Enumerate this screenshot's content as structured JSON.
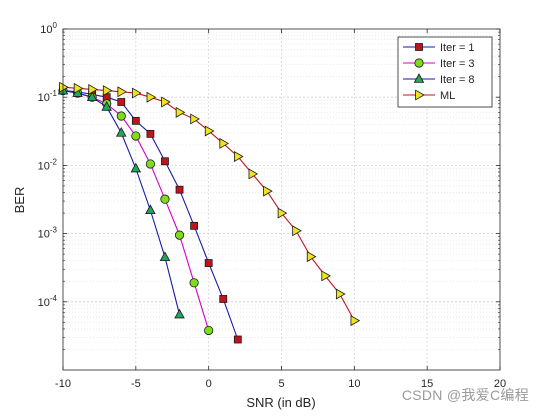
{
  "chart_data": {
    "type": "line",
    "xlabel": "SNR (in dB)",
    "ylabel": "BER",
    "xlim": [
      -10,
      20
    ],
    "ylim": [
      1e-05,
      1
    ],
    "yscale": "log",
    "grid": true,
    "legend_position": "top-right",
    "x_ticks": [
      -10,
      -5,
      0,
      5,
      10,
      15,
      20
    ],
    "y_ticks": [
      {
        "value": 1,
        "base": "10",
        "exp": "0"
      },
      {
        "value": 0.1,
        "base": "10",
        "exp": "-1"
      },
      {
        "value": 0.01,
        "base": "10",
        "exp": "-2"
      },
      {
        "value": 0.001,
        "base": "10",
        "exp": "-3"
      },
      {
        "value": 0.0001,
        "base": "10",
        "exp": "-4"
      }
    ],
    "series": [
      {
        "name": "Iter = 1",
        "line_color": "#1a1aa8",
        "marker": "square",
        "marker_fill": "#c0141c",
        "x": [
          -10,
          -9,
          -8,
          -7,
          -6,
          -5,
          -4,
          -3,
          -2,
          -1,
          0,
          1,
          2
        ],
        "y": [
          0.125,
          0.12,
          0.11,
          0.1,
          0.085,
          0.045,
          0.029,
          0.0115,
          0.0044,
          0.0013,
          0.00037,
          0.00011,
          2.8e-05
        ]
      },
      {
        "name": "Iter = 3",
        "line_color": "#d400c8",
        "marker": "circle",
        "marker_fill": "#7fdc1c",
        "x": [
          -10,
          -9,
          -8,
          -7,
          -6,
          -5,
          -4,
          -3,
          -2,
          -1,
          0
        ],
        "y": [
          0.125,
          0.115,
          0.1,
          0.08,
          0.053,
          0.027,
          0.0105,
          0.0032,
          0.00095,
          0.00019,
          3.8e-05
        ]
      },
      {
        "name": "Iter = 8",
        "line_color": "#1a1aa8",
        "marker": "triangle-up",
        "marker_fill": "#1fa85a",
        "x": [
          -10,
          -9,
          -8,
          -7,
          -6,
          -5,
          -4,
          -3,
          -2
        ],
        "y": [
          0.125,
          0.115,
          0.1,
          0.072,
          0.03,
          0.009,
          0.0022,
          0.00045,
          6.5e-05
        ]
      },
      {
        "name": "ML",
        "line_color": "#c0141c",
        "marker": "triangle-right",
        "marker_fill": "#f0e21c",
        "x": [
          -10,
          -9,
          -8,
          -7,
          -6,
          -5,
          -4,
          -3,
          -2,
          -1,
          0,
          1,
          2,
          3,
          4,
          5,
          6,
          7,
          8,
          9,
          10
        ],
        "y": [
          0.14,
          0.135,
          0.13,
          0.125,
          0.12,
          0.115,
          0.1,
          0.085,
          0.06,
          0.048,
          0.032,
          0.021,
          0.0135,
          0.0075,
          0.0042,
          0.002,
          0.0011,
          0.00046,
          0.00024,
          0.00013,
          5.3e-05
        ]
      }
    ]
  },
  "watermark": "CSDN @我爱C编程"
}
